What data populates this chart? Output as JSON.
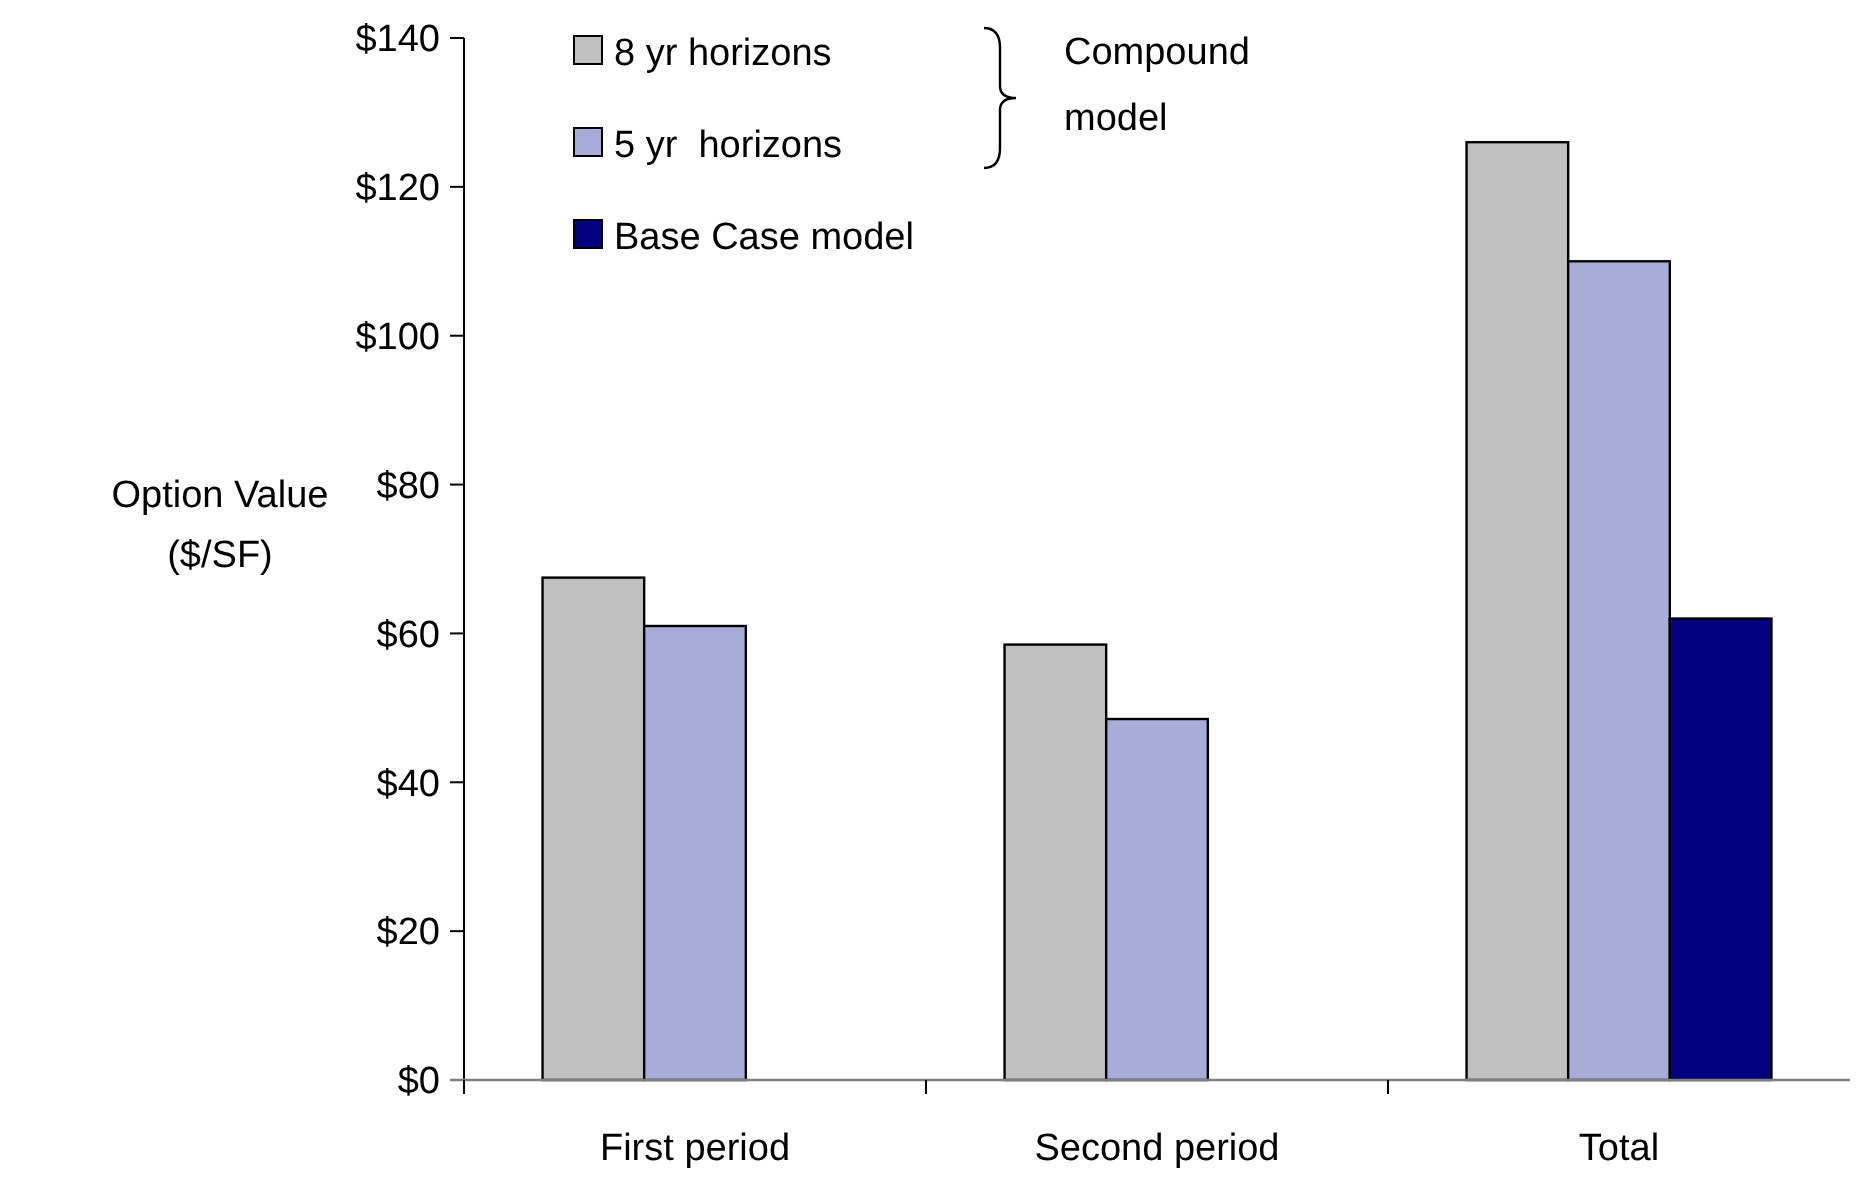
{
  "chart_data": {
    "type": "bar",
    "categories": [
      "First period",
      "Second period",
      "Total"
    ],
    "series": [
      {
        "name": "8 yr horizons",
        "color": "#c0c0c0",
        "values": [
          67.5,
          58.5,
          126
        ]
      },
      {
        "name": "5 yr  horizons",
        "color": "#a8acd8",
        "values": [
          61,
          48.5,
          110
        ]
      },
      {
        "name": "Base Case model",
        "color": "#000080",
        "values": [
          null,
          null,
          62
        ]
      }
    ],
    "ylabel": "Option Value ($/SF)",
    "ylim": [
      0,
      140
    ],
    "yticks": [
      {
        "value": 0,
        "label": "$0"
      },
      {
        "value": 20,
        "label": "$20"
      },
      {
        "value": 40,
        "label": "$40"
      },
      {
        "value": 60,
        "label": "$60"
      },
      {
        "value": 80,
        "label": "$80"
      },
      {
        "value": 100,
        "label": "$100"
      },
      {
        "value": 120,
        "label": "$120"
      },
      {
        "value": 140,
        "label": "$140"
      }
    ],
    "annotations": [
      "Compound model"
    ],
    "legend": "top left",
    "grid": false
  }
}
